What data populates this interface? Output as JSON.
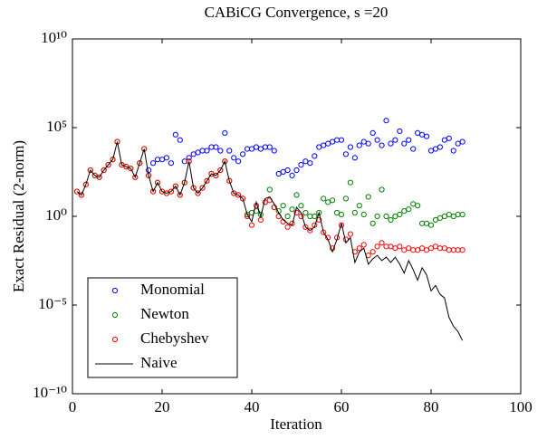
{
  "chart_data": {
    "type": "line",
    "title": "CABiCG Convergence, s =20",
    "x_label": "Iteration",
    "y_label": "Exact Residual (2-norm)",
    "log_y": true,
    "legend_position": "lower left",
    "xlim": [
      0,
      100
    ],
    "xticks": [
      0,
      20,
      40,
      60,
      80,
      100
    ],
    "ylim": [
      1e-10,
      10000000000.0
    ],
    "yticks": [
      {
        "value": 1e-10,
        "label": "10⁻¹⁰"
      },
      {
        "value": 1e-05,
        "label": "10⁻⁵"
      },
      {
        "value": 1,
        "label": "10⁰"
      },
      {
        "value": 100000.0,
        "label": "10⁵"
      },
      {
        "value": 10000000000.0,
        "label": "10¹⁰"
      }
    ],
    "x": [
      1,
      2,
      3,
      4,
      5,
      6,
      7,
      8,
      9,
      10,
      11,
      12,
      13,
      14,
      15,
      16,
      17,
      18,
      19,
      20,
      21,
      22,
      23,
      24,
      25,
      26,
      27,
      28,
      29,
      30,
      31,
      32,
      33,
      34,
      35,
      36,
      37,
      38,
      39,
      40,
      41,
      42,
      43,
      44,
      45,
      46,
      47,
      48,
      49,
      50,
      51,
      52,
      53,
      54,
      55,
      56,
      57,
      58,
      59,
      60,
      61,
      62,
      63,
      64,
      65,
      66,
      67,
      68,
      69,
      70,
      71,
      72,
      73,
      74,
      75,
      76,
      77,
      78,
      79,
      80,
      81,
      82,
      83,
      84,
      85,
      86,
      87
    ],
    "series": [
      {
        "name": "Monomial",
        "color": "#0000ff",
        "style": "marker",
        "values": [
          null,
          null,
          null,
          null,
          null,
          null,
          null,
          null,
          null,
          null,
          null,
          null,
          null,
          null,
          null,
          null,
          400,
          1000,
          1600,
          1600,
          2000,
          1000,
          40000,
          20000,
          1260,
          2000,
          3200,
          4000,
          5000,
          5000,
          8000,
          8000,
          5000,
          50000,
          5000,
          2000,
          1260,
          3200,
          6300,
          6300,
          8000,
          6300,
          8000,
          8000,
          5000,
          250,
          320,
          400,
          200,
          400,
          800,
          1260,
          1000,
          2500,
          8000,
          10000,
          12600,
          16000,
          20000,
          20000,
          3200,
          8000,
          2000,
          10000,
          16000,
          12600,
          50000,
          20000,
          10000,
          250000,
          12600,
          20000,
          63000,
          12600,
          20000,
          6300,
          50000,
          40000,
          32000,
          5000,
          6300,
          8000,
          20000,
          25000,
          5000,
          12600,
          16000
        ]
      },
      {
        "name": "Newton",
        "color": "#008000",
        "style": "marker",
        "values": [
          25,
          16,
          63,
          400,
          200,
          160,
          400,
          800,
          1600,
          16000,
          800,
          630,
          500,
          160,
          1000,
          6300,
          200,
          25,
          80,
          25,
          20,
          25,
          50,
          16,
          80,
          1260,
          40,
          20,
          40,
          100,
          250,
          200,
          400,
          1260,
          100,
          20,
          16,
          10,
          1.26,
          1.6,
          2,
          1.26,
          6.3,
          32,
          3.2,
          2,
          4,
          1,
          2.5,
          16,
          4,
          1.6,
          1,
          1,
          1.6,
          10,
          6.3,
          8,
          1.6,
          1.26,
          10,
          80,
          1.6,
          4,
          1.26,
          12.6,
          0.4,
          1,
          32,
          1,
          0.63,
          1,
          1.26,
          2,
          2.5,
          5,
          4,
          0.4,
          0.4,
          0.32,
          0.63,
          0.8,
          1,
          1.26,
          1,
          1.26,
          1.26
        ]
      },
      {
        "name": "Chebyshev",
        "color": "#ff0000",
        "style": "marker",
        "values": [
          25,
          16,
          63,
          400,
          200,
          160,
          400,
          800,
          1600,
          16000,
          800,
          630,
          500,
          160,
          1000,
          6300,
          200,
          25,
          80,
          25,
          20,
          25,
          50,
          16,
          80,
          1260,
          40,
          20,
          40,
          100,
          250,
          200,
          400,
          1260,
          100,
          20,
          16,
          10,
          1,
          0.32,
          4,
          0.63,
          6.3,
          8,
          3.2,
          1,
          0.5,
          0.25,
          0.4,
          1.6,
          1,
          0.25,
          0.16,
          0.32,
          0.63,
          0.126,
          0.063,
          0.016,
          0.063,
          0.32,
          0.05,
          0.1,
          0.01,
          0.016,
          0.025,
          0.0063,
          0.01,
          0.02,
          0.032,
          0.02,
          0.02,
          0.016,
          0.02,
          0.0126,
          0.016,
          0.0126,
          0.0126,
          0.016,
          0.0126,
          0.016,
          0.02,
          0.016,
          0.016,
          0.0126,
          0.0126,
          0.0126,
          0.0126
        ]
      },
      {
        "name": "Naive",
        "color": "#000000",
        "style": "line",
        "values": [
          25,
          16,
          63,
          400,
          200,
          160,
          400,
          800,
          1600,
          16000,
          800,
          630,
          500,
          160,
          1000,
          6300,
          200,
          25,
          80,
          25,
          20,
          25,
          50,
          16,
          80,
          1260,
          40,
          20,
          40,
          100,
          250,
          200,
          400,
          1260,
          100,
          20,
          16,
          10,
          1.26,
          0.5,
          6.3,
          1,
          10,
          12.6,
          5,
          1.6,
          0.63,
          0.4,
          0.32,
          3.2,
          1.6,
          0.25,
          0.16,
          0.25,
          1.6,
          0.126,
          0.05,
          0.01,
          0.05,
          0.4,
          0.032,
          0.063,
          0.0025,
          0.01,
          0.016,
          0.002,
          0.004,
          0.0063,
          0.0032,
          0.005,
          0.0025,
          0.005,
          0.002,
          0.00063,
          0.0032,
          0.001,
          0.00025,
          0.00126,
          0.0005,
          6.3e-05,
          0.000126,
          4e-05,
          2.5e-05,
          2e-06,
          6.3e-07,
          3.2e-07,
          1e-07
        ]
      }
    ]
  }
}
